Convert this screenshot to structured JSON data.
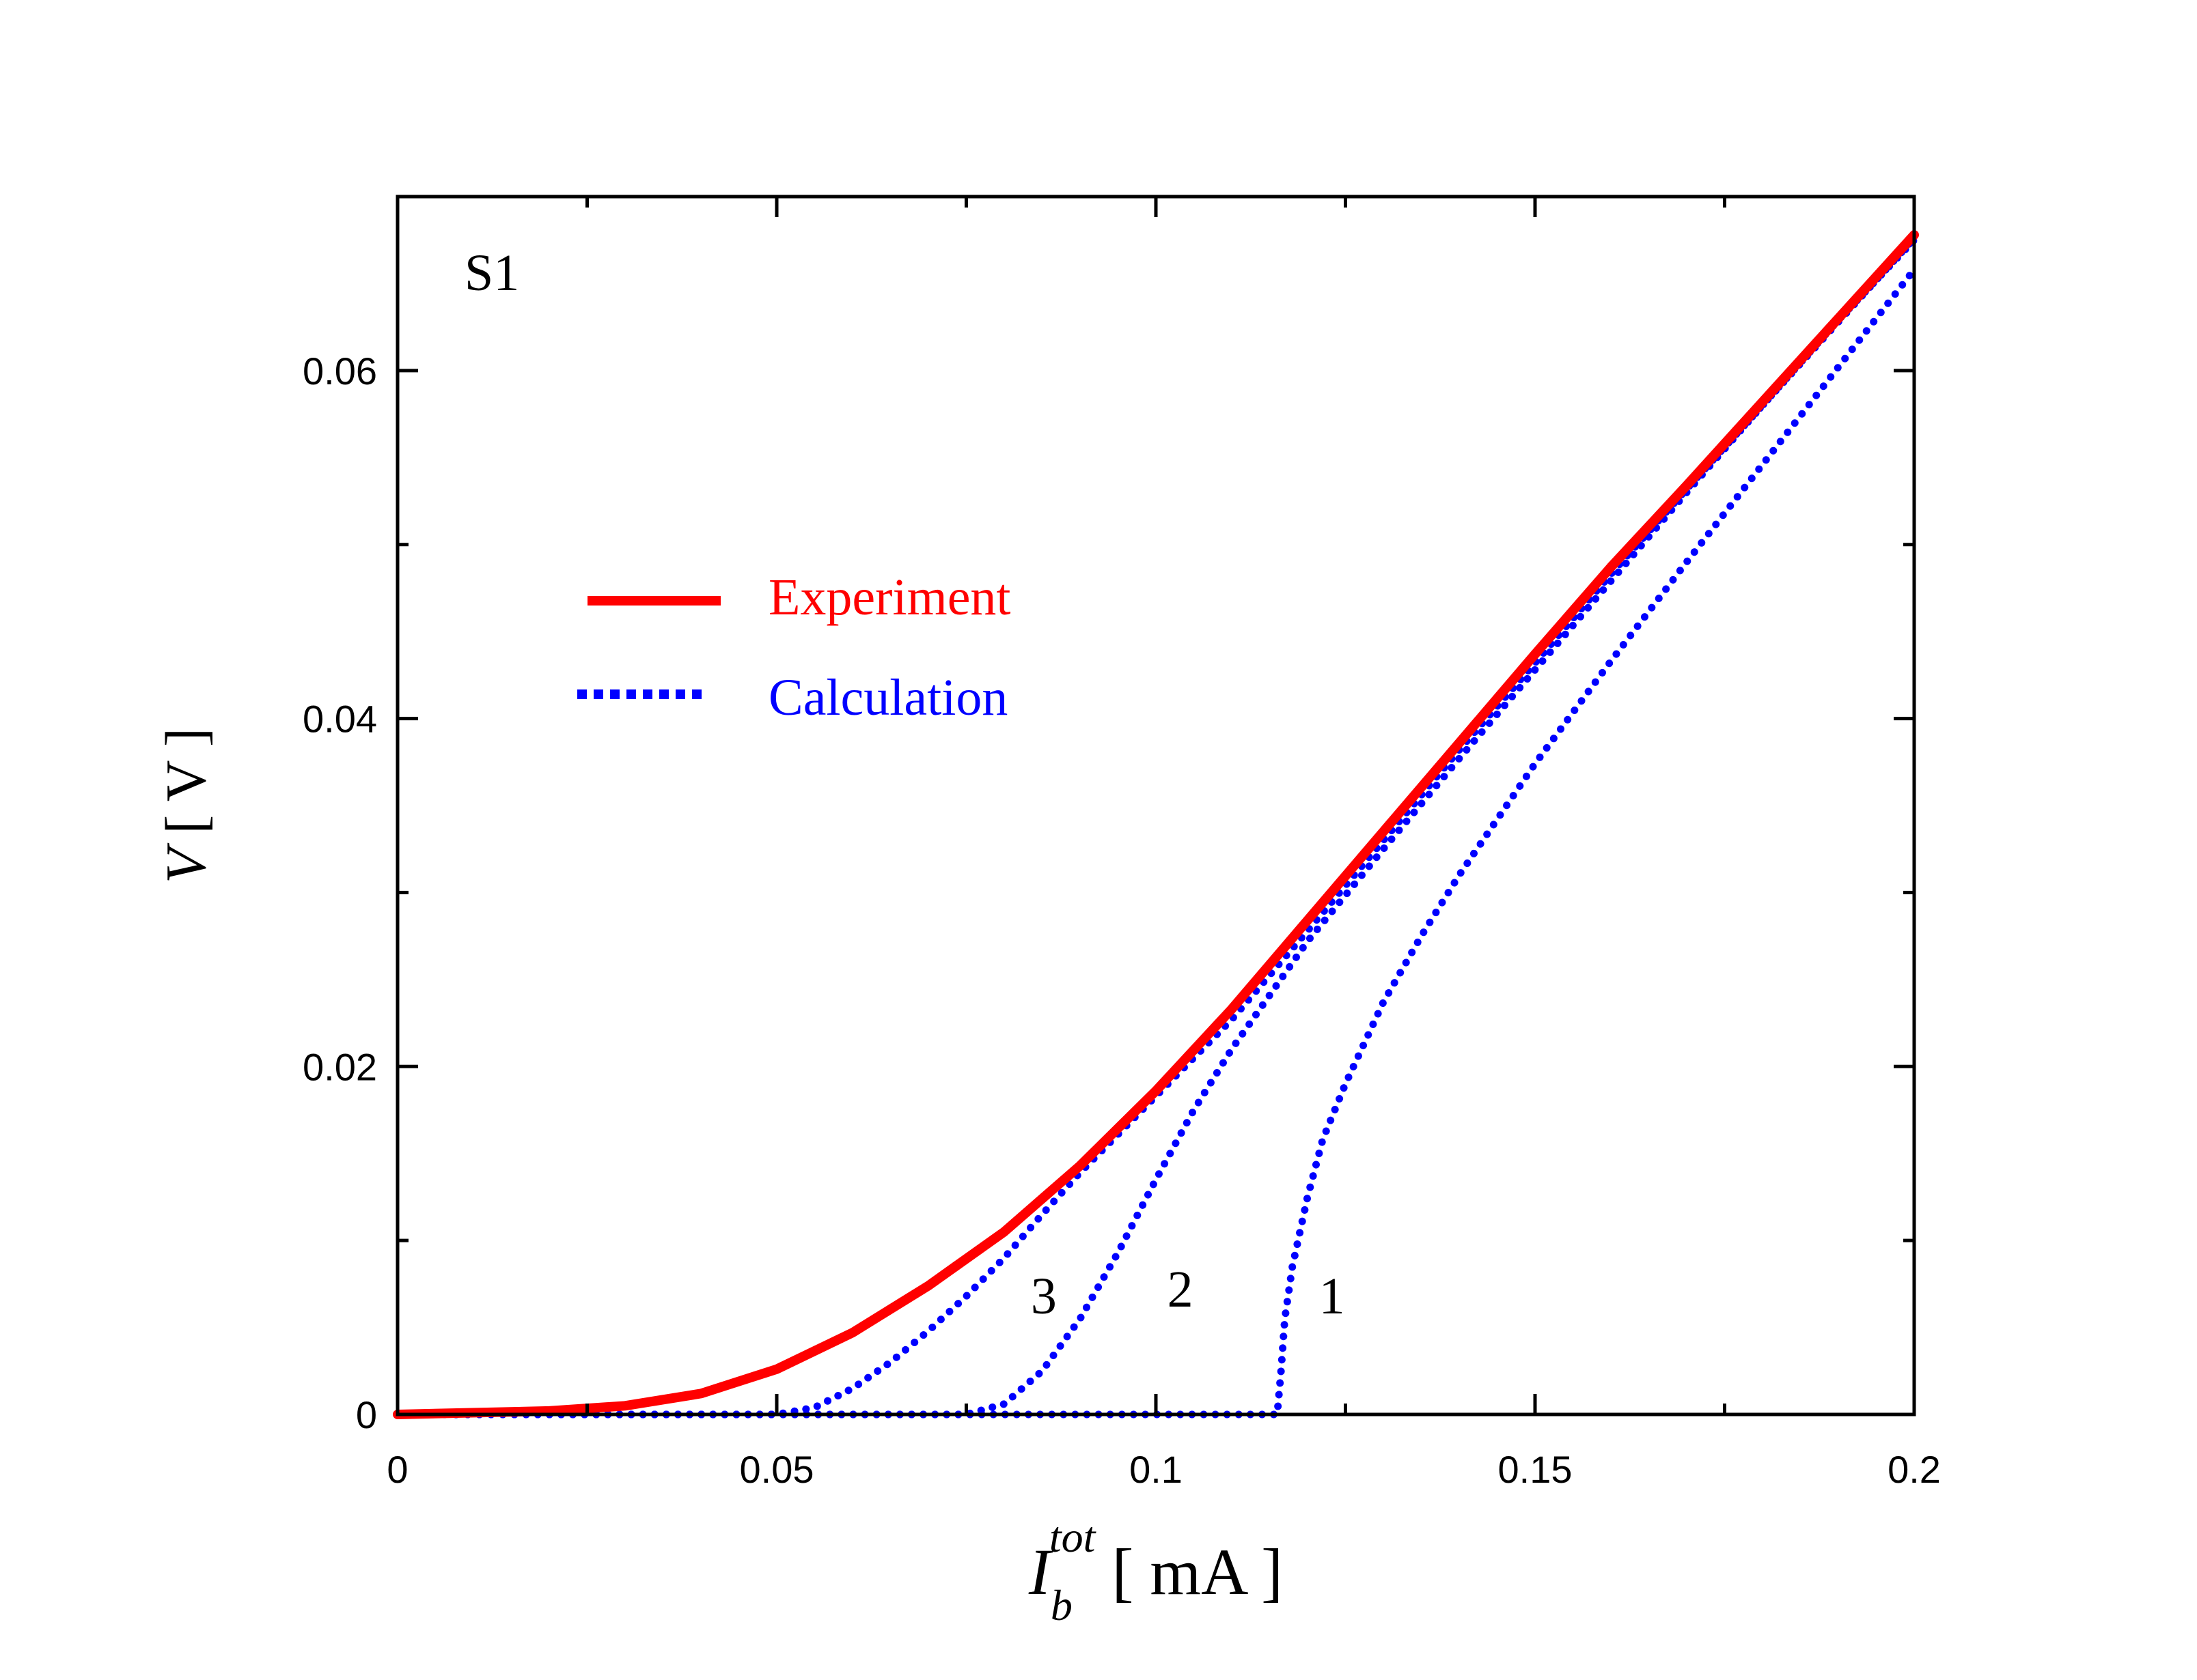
{
  "chart_data": {
    "type": "line",
    "title": "",
    "panel_label": "S1",
    "xlabel": {
      "main": "I",
      "sub": "b",
      "sup": "tot",
      "unit": "mA"
    },
    "ylabel": {
      "main": "V",
      "unit": "V"
    },
    "xlim": [
      0,
      0.2
    ],
    "ylim": [
      0,
      0.07
    ],
    "xticks": [
      0,
      0.05,
      0.1,
      0.15,
      0.2
    ],
    "xtick_labels": [
      "0",
      "0.05",
      "0.1",
      "0.15",
      "0.2"
    ],
    "yticks": [
      0,
      0.02,
      0.04,
      0.06
    ],
    "ytick_labels": [
      "0",
      "0.02",
      "0.04",
      "0.06"
    ],
    "legend": {
      "position": "upper-left",
      "entries": [
        {
          "label": "Experiment",
          "color": "#ff0000",
          "style": "solid"
        },
        {
          "label": "Calculation",
          "color": "#0000ff",
          "style": "dotted"
        }
      ]
    },
    "annotations": [
      {
        "text": "1",
        "x": 0.1215,
        "y": 0.0058
      },
      {
        "text": "2",
        "x": 0.1015,
        "y": 0.0062
      },
      {
        "text": "3",
        "x": 0.0835,
        "y": 0.0058
      }
    ],
    "series": [
      {
        "name": "Experiment",
        "color": "#ff0000",
        "style": "solid",
        "x": [
          0,
          0.02,
          0.03,
          0.04,
          0.05,
          0.06,
          0.07,
          0.08,
          0.09,
          0.1,
          0.11,
          0.12,
          0.13,
          0.14,
          0.15,
          0.16,
          0.17,
          0.18,
          0.19,
          0.2
        ],
        "y": [
          0,
          0.0002,
          0.0005,
          0.0012,
          0.0026,
          0.0047,
          0.0074,
          0.0105,
          0.0143,
          0.0186,
          0.0233,
          0.0284,
          0.0335,
          0.0386,
          0.0437,
          0.0487,
          0.0534,
          0.0582,
          0.063,
          0.0678
        ]
      },
      {
        "name": "Calculation 1",
        "color": "#0000ff",
        "style": "dotted",
        "x": [
          0,
          0.116,
          0.1165,
          0.117,
          0.118,
          0.12,
          0.122,
          0.125,
          0.13,
          0.135,
          0.14,
          0.15,
          0.16,
          0.17,
          0.18,
          0.19,
          0.2
        ],
        "y": [
          0,
          0,
          0.0025,
          0.0055,
          0.0085,
          0.0125,
          0.0158,
          0.019,
          0.0237,
          0.0275,
          0.031,
          0.0374,
          0.0433,
          0.049,
          0.0546,
          0.0602,
          0.0658
        ]
      },
      {
        "name": "Calculation 2",
        "color": "#0000ff",
        "style": "dotted",
        "x": [
          0,
          0.075,
          0.08,
          0.085,
          0.09,
          0.095,
          0.1,
          0.105,
          0.11,
          0.12,
          0.13,
          0.14,
          0.15,
          0.16,
          0.17,
          0.18,
          0.19,
          0.2
        ],
        "y": [
          0,
          0,
          0.0006,
          0.0025,
          0.0055,
          0.0093,
          0.0135,
          0.0175,
          0.021,
          0.0272,
          0.0325,
          0.0377,
          0.0428,
          0.0479,
          0.053,
          0.058,
          0.0629,
          0.0675
        ]
      },
      {
        "name": "Calculation 3",
        "color": "#0000ff",
        "style": "dotted",
        "x": [
          0,
          0.05,
          0.055,
          0.06,
          0.065,
          0.07,
          0.075,
          0.08,
          0.085,
          0.09,
          0.1,
          0.11,
          0.12,
          0.13,
          0.14,
          0.15,
          0.16,
          0.17,
          0.18,
          0.19,
          0.2
        ],
        "y": [
          0,
          0,
          0.0004,
          0.0015,
          0.003,
          0.0048,
          0.0068,
          0.009,
          0.0115,
          0.0139,
          0.0183,
          0.0227,
          0.0278,
          0.033,
          0.0382,
          0.0432,
          0.0483,
          0.0532,
          0.058,
          0.0628,
          0.0676
        ]
      }
    ]
  }
}
